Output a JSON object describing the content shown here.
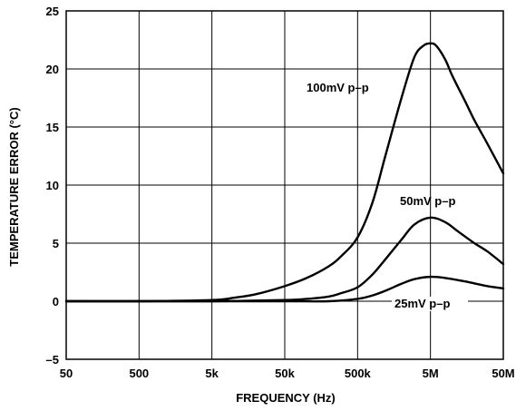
{
  "chart_data": {
    "type": "line",
    "xlabel": "FREQUENCY (Hz)",
    "ylabel": "TEMPERATURE ERROR (°C)",
    "x_scale": "log",
    "xlim": [
      50,
      50000000
    ],
    "ylim": [
      -5,
      25
    ],
    "x_ticks": [
      {
        "value": 50,
        "label": "50"
      },
      {
        "value": 500,
        "label": "500"
      },
      {
        "value": 5000,
        "label": "5k"
      },
      {
        "value": 50000,
        "label": "50k"
      },
      {
        "value": 500000,
        "label": "500k"
      },
      {
        "value": 5000000,
        "label": "5M"
      },
      {
        "value": 50000000,
        "label": "50M"
      }
    ],
    "y_ticks": [
      {
        "value": 25,
        "label": "25"
      },
      {
        "value": 20,
        "label": "20"
      },
      {
        "value": 15,
        "label": "15"
      },
      {
        "value": 10,
        "label": "10"
      },
      {
        "value": 5,
        "label": "5"
      },
      {
        "value": 0,
        "label": "0"
      },
      {
        "value": -5,
        "label": "–5"
      }
    ],
    "grid": true,
    "series": [
      {
        "name": "100mV p–p",
        "x": [
          50,
          500,
          5000,
          10000,
          20000,
          50000,
          100000,
          200000,
          300000,
          500000,
          800000,
          1200000,
          2000000,
          3000000,
          4000000,
          5000000,
          6000000,
          8000000,
          10000000,
          15000000,
          20000000,
          30000000,
          50000000
        ],
        "y": [
          0,
          0,
          0.1,
          0.3,
          0.6,
          1.3,
          2.0,
          3.0,
          3.9,
          5.5,
          8.5,
          12.5,
          17.5,
          21.0,
          22.0,
          22.2,
          22.0,
          20.8,
          19.4,
          17.2,
          15.6,
          13.6,
          11.0
        ]
      },
      {
        "name": "50mV p–p",
        "x": [
          50,
          500,
          5000,
          50000,
          100000,
          200000,
          300000,
          500000,
          800000,
          1200000,
          2000000,
          3000000,
          5000000,
          8000000,
          12000000,
          20000000,
          30000000,
          50000000
        ],
        "y": [
          0,
          0,
          0,
          0.1,
          0.2,
          0.4,
          0.7,
          1.2,
          2.3,
          3.6,
          5.3,
          6.6,
          7.2,
          6.8,
          6.0,
          5.0,
          4.3,
          3.2
        ]
      },
      {
        "name": "25mV p–p",
        "x": [
          50,
          500,
          5000,
          50000,
          200000,
          500000,
          800000,
          1200000,
          2000000,
          3000000,
          5000000,
          8000000,
          15000000,
          30000000,
          50000000
        ],
        "y": [
          0,
          0,
          0,
          0,
          0,
          0.2,
          0.5,
          0.9,
          1.5,
          1.9,
          2.1,
          2.0,
          1.7,
          1.3,
          1.1
        ]
      }
    ]
  }
}
